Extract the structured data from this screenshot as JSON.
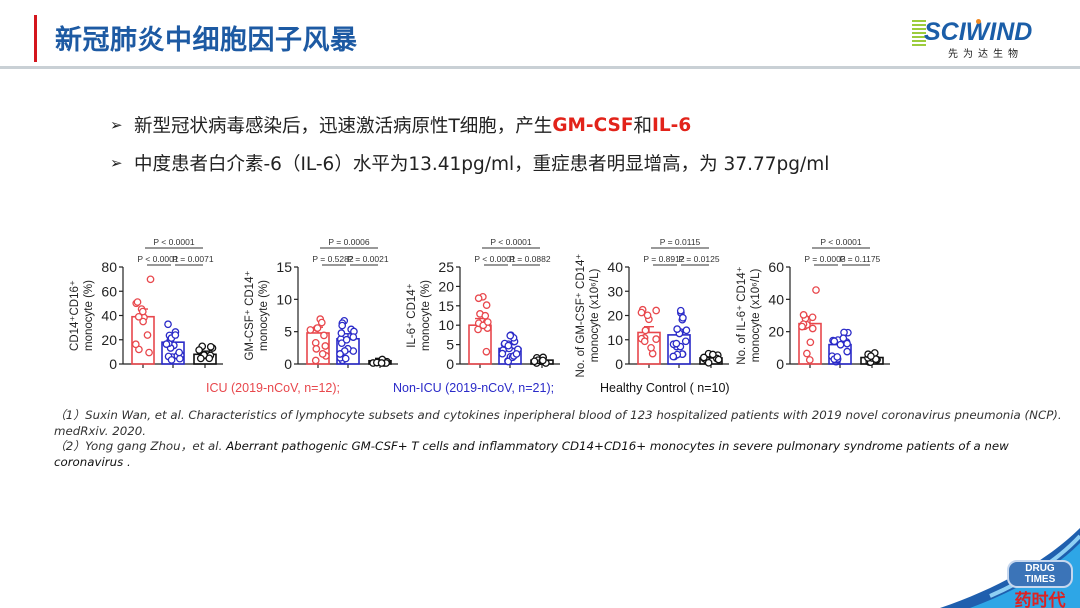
{
  "header": {
    "title": "新冠肺炎中细胞因子风暴",
    "logo": {
      "text": "SCIWIND",
      "subtitle": "先为达生物",
      "accent_color": "#1b5ea8",
      "dot_color": "#f08a24"
    },
    "accent_color": "#d4161d",
    "title_color": "#1d5aa3"
  },
  "bullets": [
    {
      "icon": "arrow-bullet",
      "prefix": "新型冠状病毒感染后，迅速激活病原性T细胞，产生",
      "hl1": "GM-CSF",
      "mid": "和",
      "hl2": "IL-6"
    },
    {
      "icon": "arrow-bullet",
      "text": "中度患者白介素-6（IL-6）水平为13.41pg/ml，重症患者明显增高，为 37.77pg/ml"
    }
  ],
  "legend": [
    {
      "label": "ICU (2019-nCoV, n=12);",
      "color": "#e8474c"
    },
    {
      "label": "Non-ICU (2019-nCoV, n=21);",
      "color": "#2a2ac8"
    },
    {
      "label": "Healthy Control ( n=10)",
      "color": "#111111"
    }
  ],
  "chart_data": [
    {
      "type": "bar",
      "ylabel": "CD14+CD16+ monocyte (%)",
      "categories": [
        "ICU",
        "Non-ICU",
        "Healthy Control"
      ],
      "values": [
        39,
        18,
        8
      ],
      "ylim": [
        0,
        80
      ],
      "yticks": [
        0,
        20,
        40,
        60,
        80
      ],
      "pvalues": {
        "overall": "P < 0.0001",
        "icu_vs_nonicu": "P < 0.0001",
        "nonicu_vs_hc": "P = 0.0071"
      }
    },
    {
      "type": "bar",
      "ylabel": "GM-CSF+ CD14+ monocyte (%)",
      "categories": [
        "ICU",
        "Non-ICU",
        "Healthy Control"
      ],
      "values": [
        4.8,
        3.9,
        0.5
      ],
      "ylim": [
        0,
        15
      ],
      "yticks": [
        0,
        5,
        10,
        15
      ],
      "pvalues": {
        "overall": "P = 0.0006",
        "icu_vs_nonicu": "P = 0.5282",
        "nonicu_vs_hc": "P = 0.0021"
      }
    },
    {
      "type": "bar",
      "ylabel": "IL-6+ CD14+ monocyte (%)",
      "categories": [
        "ICU",
        "Non-ICU",
        "Healthy Control"
      ],
      "values": [
        10,
        4,
        1
      ],
      "ylim": [
        0,
        25
      ],
      "yticks": [
        0,
        5,
        10,
        15,
        20,
        25
      ],
      "pvalues": {
        "overall": "P < 0.0001",
        "icu_vs_nonicu": "P < 0.0001",
        "nonicu_vs_hc": "P = 0.0882"
      }
    },
    {
      "type": "bar",
      "ylabel": "No. of GM-CSF+ CD14+ monocyte (x10^6/L)",
      "categories": [
        "ICU",
        "Non-ICU",
        "Healthy Control"
      ],
      "values": [
        13,
        12,
        2.5
      ],
      "ylim": [
        0,
        40
      ],
      "yticks": [
        0,
        10,
        20,
        30,
        40
      ],
      "pvalues": {
        "overall": "P = 0.0115",
        "icu_vs_nonicu": "P = 0.8912",
        "nonicu_vs_hc": "P = 0.0125"
      }
    },
    {
      "type": "bar",
      "ylabel": "No. of IL-6+ CD14+ monocyte (x10^6/L)",
      "categories": [
        "ICU",
        "Non-ICU",
        "Healthy Control"
      ],
      "values": [
        25,
        12,
        4
      ],
      "ylim": [
        0,
        60
      ],
      "yticks": [
        0,
        20,
        40,
        60
      ],
      "pvalues": {
        "overall": "P < 0.0001",
        "icu_vs_nonicu": "P = 0.0003",
        "nonicu_vs_hc": "P = 0.1175"
      }
    }
  ],
  "references": [
    {
      "text": "（1）Suxin Wan, et al. Characteristics of lymphocyte subsets and cytokines inperipheral blood of 123 hospitalized patients with 2019 novel coronavirus pneumonia (NCP). medRxiv. 2020."
    },
    {
      "prefix": "（2）Yong gang Zhou，et al. ",
      "text": "Aberrant pathogenic GM-CSF+ T cells and inflammatory CD14+CD16+ monocytes in severe pulmonary syndrome patients of a new coronavirus ."
    }
  ],
  "watermark": {
    "pill": "DRUG TIMES",
    "cn": "药时代"
  }
}
